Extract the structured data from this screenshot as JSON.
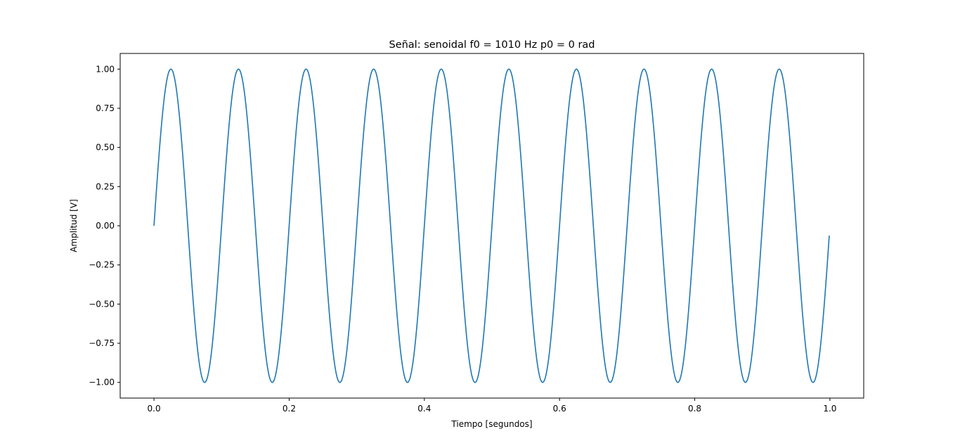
{
  "chart_data": {
    "type": "line",
    "title": "Señal: senoidal f0 = 1010 Hz p0 = 0 rad",
    "xlabel": "Tiempo [segundos]",
    "ylabel": "Amplitud [V]",
    "xlim": [
      -0.05,
      1.05
    ],
    "ylim": [
      -1.1,
      1.1
    ],
    "xticks": [
      0.0,
      0.2,
      0.4,
      0.6,
      0.8,
      1.0
    ],
    "xtick_labels": [
      "0.0",
      "0.2",
      "0.4",
      "0.6",
      "0.8",
      "1.0"
    ],
    "yticks": [
      1.0,
      0.75,
      0.5,
      0.25,
      0.0,
      -0.25,
      -0.5,
      -0.75,
      -1.0
    ],
    "ytick_labels": [
      "1.00",
      "0.75",
      "0.50",
      "0.25",
      "0.00",
      "−0.25",
      "−0.50",
      "−0.75",
      "−1.00"
    ],
    "grid": false,
    "series": [
      {
        "color": "#1f77b4",
        "function": "sin",
        "apparent_cycles": 10,
        "amplitude": 1.0,
        "phase": 0,
        "x_start": 0.0,
        "x_end": 0.999
      }
    ]
  }
}
